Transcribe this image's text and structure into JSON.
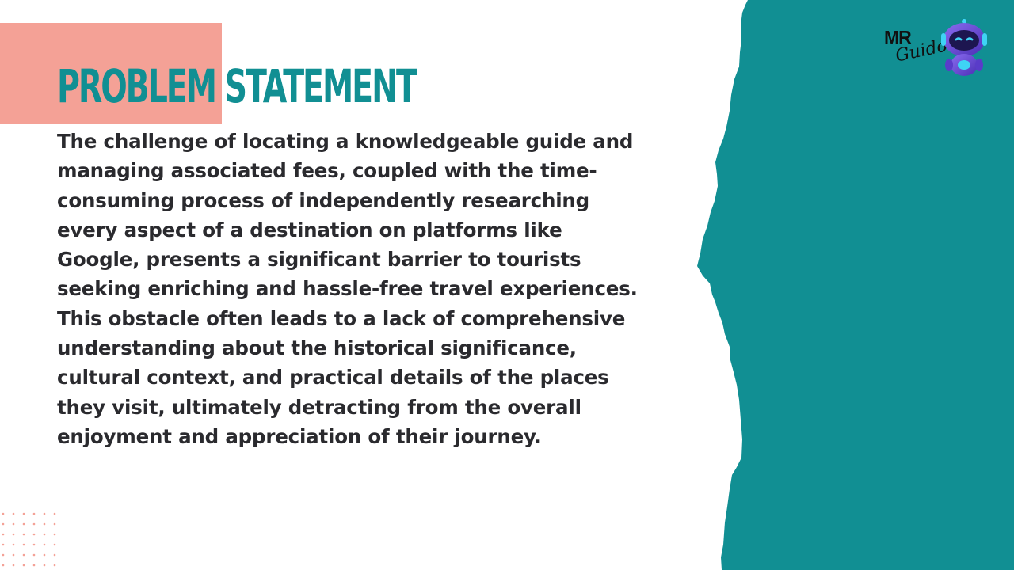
{
  "slide": {
    "title_part_1": "PROBLEM",
    "title_part_2": "STATEMENT",
    "body": "The challenge of locating a knowledgeable guide and managing associated fees, coupled with the time-consuming process of independently researching every aspect of a destination on platforms like Google, presents a significant barrier to tourists seeking enriching and hassle-free travel experiences. This obstacle often leads to a lack of comprehensive understanding about the historical significance, cultural context, and practical details of the places they visit, ultimately detracting from the overall enjoyment and appreciation of their journey."
  },
  "logo": {
    "mr": "MR",
    "guido": "Guido",
    "mascot_icon": "robot-icon"
  },
  "colors": {
    "teal": "#118f93",
    "salmon": "#f4a196",
    "text": "#2a2a2e",
    "dots": "#f4a196",
    "robot": "#6b4bd8"
  }
}
